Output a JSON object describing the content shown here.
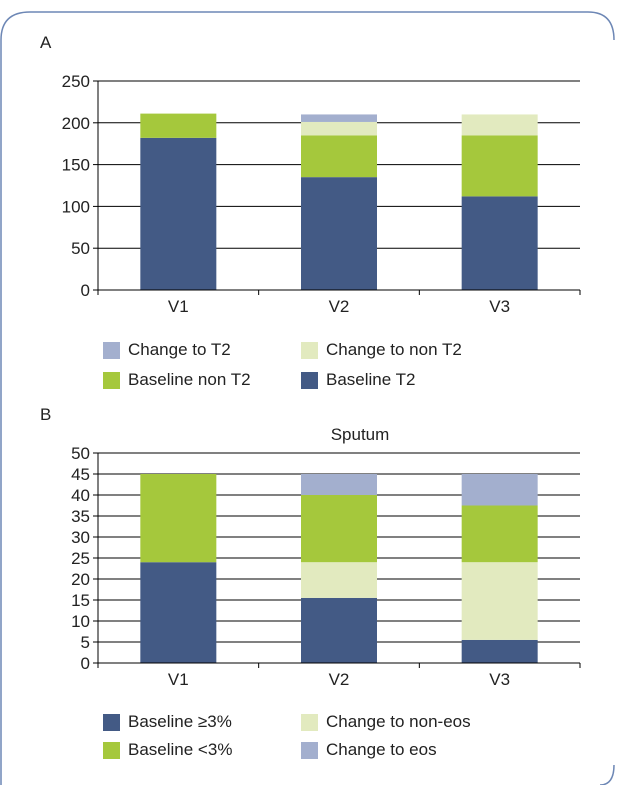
{
  "colors": {
    "baseline_t2": "#435a85",
    "baseline_non_t2": "#a5c83c",
    "change_to_non_t2": "#e2eabf",
    "change_to_t2": "#a3afce",
    "frame_border": "#6d87b5"
  },
  "panels": {
    "a_label": "A",
    "b_label": "B"
  },
  "chart_data": [
    {
      "type": "bar",
      "stacked": true,
      "title": "",
      "categories": [
        "V1",
        "V2",
        "V3"
      ],
      "yticks": [
        "0",
        "50",
        "100",
        "150",
        "200",
        "250"
      ],
      "ylim": [
        0,
        250
      ],
      "grid": true,
      "series": [
        {
          "name": "Baseline T2",
          "values": [
            182,
            135,
            112
          ],
          "color": "#435a85"
        },
        {
          "name": "Baseline non T2",
          "values": [
            29,
            50,
            73
          ],
          "color": "#a5c83c"
        },
        {
          "name": "Change to non T2",
          "values": [
            0,
            16,
            25
          ],
          "color": "#e2eabf"
        },
        {
          "name": "Change to T2",
          "values": [
            0,
            9,
            0
          ],
          "color": "#a3afce"
        }
      ],
      "legend": [
        {
          "label": "Change to T2",
          "color": "#a3afce"
        },
        {
          "label": "Change to non T2",
          "color": "#e2eabf"
        },
        {
          "label": "Baseline non T2",
          "color": "#a5c83c"
        },
        {
          "label": "Baseline T2",
          "color": "#435a85"
        }
      ]
    },
    {
      "type": "bar",
      "stacked": true,
      "title": "Sputum",
      "categories": [
        "V1",
        "V2",
        "V3"
      ],
      "yticks": [
        "0",
        "5",
        "10",
        "15",
        "20",
        "25",
        "30",
        "35",
        "40",
        "45",
        "50"
      ],
      "ylim": [
        0,
        50
      ],
      "grid": true,
      "series": [
        {
          "name": "Baseline ≥3%",
          "values": [
            24,
            15.5,
            5.5
          ],
          "color": "#435a85"
        },
        {
          "name": "Change to non-eos",
          "values": [
            0,
            8.5,
            18.5
          ],
          "color": "#e2eabf"
        },
        {
          "name": "Baseline <3%",
          "values": [
            21,
            16,
            13.5
          ],
          "color": "#a5c83c"
        },
        {
          "name": "Change to eos",
          "values": [
            0,
            5,
            7.5
          ],
          "color": "#a3afce"
        }
      ],
      "legend": [
        {
          "label": "Baseline ≥3%",
          "color": "#435a85"
        },
        {
          "label": "Change to non-eos",
          "color": "#e2eabf"
        },
        {
          "label": "Baseline <3%",
          "color": "#a5c83c"
        },
        {
          "label": "Change to eos",
          "color": "#a3afce"
        }
      ]
    }
  ]
}
